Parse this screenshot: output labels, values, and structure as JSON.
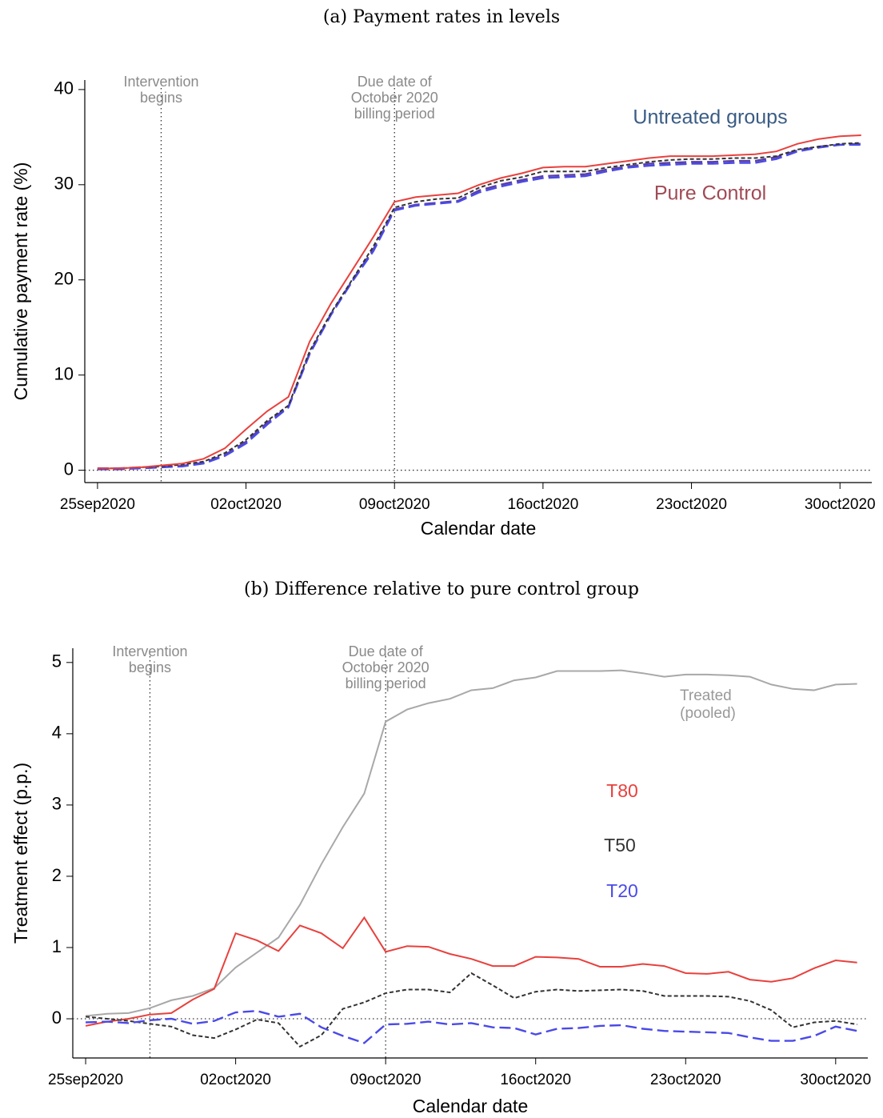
{
  "chart_data": [
    {
      "type": "line",
      "title": "(a) Payment rates in levels",
      "xlabel": "Calendar date",
      "ylabel": "Cumulative payment rate (%)",
      "xlim": [
        "2020-09-24T09:36Z",
        "2020-10-31T12:00Z"
      ],
      "ylim": [
        -1.3,
        41
      ],
      "xticks": [
        {
          "value": "2020-09-25",
          "label": "25sep2020"
        },
        {
          "value": "2020-10-02",
          "label": "02oct2020"
        },
        {
          "value": "2020-10-09",
          "label": "09oct2020"
        },
        {
          "value": "2020-10-16",
          "label": "16oct2020"
        },
        {
          "value": "2020-10-23",
          "label": "23oct2020"
        },
        {
          "value": "2020-10-30",
          "label": "30oct2020"
        }
      ],
      "yticks": [
        0,
        10,
        20,
        30,
        40
      ],
      "hline": 0,
      "vlines": [
        {
          "x": "2020-09-28",
          "text": [
            "Intervention",
            "begins"
          ]
        },
        {
          "x": "2020-10-09",
          "text": [
            "Due date of",
            "October 2020",
            "billing period"
          ]
        }
      ],
      "annotations": [
        {
          "text": "Untreated groups",
          "color": "#3a5c85"
        },
        {
          "text": "Pure Control",
          "color": "#a04a55"
        }
      ],
      "x": [
        "2020-09-25",
        "2020-09-26",
        "2020-09-27",
        "2020-09-28",
        "2020-09-29",
        "2020-09-30",
        "2020-10-01",
        "2020-10-02",
        "2020-10-03",
        "2020-10-04",
        "2020-10-05",
        "2020-10-06",
        "2020-10-07",
        "2020-10-08",
        "2020-10-09",
        "2020-10-10",
        "2020-10-11",
        "2020-10-12",
        "2020-10-13",
        "2020-10-14",
        "2020-10-15",
        "2020-10-16",
        "2020-10-17",
        "2020-10-18",
        "2020-10-19",
        "2020-10-20",
        "2020-10-21",
        "2020-10-22",
        "2020-10-23",
        "2020-10-24",
        "2020-10-25",
        "2020-10-26",
        "2020-10-27",
        "2020-10-28",
        "2020-10-29",
        "2020-10-30",
        "2020-10-31"
      ],
      "series": [
        {
          "color": "#5b3fa3",
          "style": "longdash",
          "values": [
            0.2,
            0.2,
            0.3,
            0.35,
            0.45,
            0.8,
            1.6,
            3.0,
            5.0,
            6.7,
            12.3,
            16.4,
            19.9,
            23.2,
            27.4,
            27.9,
            28.1,
            28.3,
            29.4,
            30.0,
            30.5,
            30.9,
            31.0,
            31.1,
            31.6,
            31.9,
            32.2,
            32.3,
            32.4,
            32.4,
            32.5,
            32.5,
            32.9,
            33.6,
            34.0,
            34.2,
            34.3
          ]
        },
        {
          "color": "#4a4ae8",
          "style": "longdash",
          "values": [
            0.1,
            0.1,
            0.2,
            0.3,
            0.4,
            0.7,
            1.5,
            2.8,
            4.8,
            6.6,
            12.2,
            16.3,
            19.8,
            23.0,
            27.3,
            27.8,
            28.0,
            28.2,
            29.2,
            29.8,
            30.3,
            30.7,
            30.8,
            30.9,
            31.4,
            31.8,
            32.0,
            32.1,
            32.2,
            32.2,
            32.3,
            32.3,
            32.7,
            33.5,
            33.9,
            34.2,
            34.2
          ]
        },
        {
          "color": "#333333",
          "style": "shortdash",
          "values": [
            0.2,
            0.2,
            0.3,
            0.4,
            0.6,
            0.9,
            1.8,
            3.2,
            5.2,
            6.8,
            12.5,
            16.5,
            20.0,
            23.5,
            27.6,
            28.2,
            28.5,
            28.6,
            29.7,
            30.4,
            30.8,
            31.4,
            31.4,
            31.4,
            31.8,
            32.1,
            32.4,
            32.6,
            32.7,
            32.7,
            32.8,
            32.8,
            33.0,
            33.7,
            34.0,
            34.3,
            34.4
          ]
        },
        {
          "color": "#e8413d",
          "style": "solid",
          "values": [
            0.2,
            0.2,
            0.3,
            0.5,
            0.7,
            1.2,
            2.3,
            4.3,
            6.2,
            7.7,
            13.5,
            17.5,
            21.0,
            24.5,
            28.2,
            28.7,
            28.9,
            29.1,
            30.0,
            30.7,
            31.2,
            31.8,
            31.9,
            31.9,
            32.2,
            32.5,
            32.8,
            33.0,
            33.0,
            33.0,
            33.1,
            33.2,
            33.5,
            34.3,
            34.8,
            35.1,
            35.2
          ]
        }
      ]
    },
    {
      "type": "line",
      "title": "(b) Difference relative to pure control group",
      "xlabel": "Calendar date",
      "ylabel": "Treatment effect (p.p.)",
      "xlim": [
        "2020-09-24T09:36Z",
        "2020-10-31T12:00Z"
      ],
      "ylim": [
        -0.55,
        5.2
      ],
      "xticks": [
        {
          "value": "2020-09-25",
          "label": "25sep2020"
        },
        {
          "value": "2020-10-02",
          "label": "02oct2020"
        },
        {
          "value": "2020-10-09",
          "label": "09oct2020"
        },
        {
          "value": "2020-10-16",
          "label": "16oct2020"
        },
        {
          "value": "2020-10-23",
          "label": "23oct2020"
        },
        {
          "value": "2020-10-30",
          "label": "30oct2020"
        }
      ],
      "yticks": [
        0,
        1,
        2,
        3,
        4,
        5
      ],
      "hline": 0,
      "vlines": [
        {
          "x": "2020-09-28",
          "text": [
            "Intervention",
            "begins"
          ]
        },
        {
          "x": "2020-10-09",
          "text": [
            "Due date of",
            "October 2020",
            "billing period"
          ]
        }
      ],
      "x": [
        "2020-09-25",
        "2020-09-26",
        "2020-09-27",
        "2020-09-28",
        "2020-09-29",
        "2020-09-30",
        "2020-10-01",
        "2020-10-02",
        "2020-10-03",
        "2020-10-04",
        "2020-10-05",
        "2020-10-06",
        "2020-10-07",
        "2020-10-08",
        "2020-10-09",
        "2020-10-10",
        "2020-10-11",
        "2020-10-12",
        "2020-10-13",
        "2020-10-14",
        "2020-10-15",
        "2020-10-16",
        "2020-10-17",
        "2020-10-18",
        "2020-10-19",
        "2020-10-20",
        "2020-10-21",
        "2020-10-22",
        "2020-10-23",
        "2020-10-24",
        "2020-10-25",
        "2020-10-26",
        "2020-10-27",
        "2020-10-28",
        "2020-10-29",
        "2020-10-30",
        "2020-10-31"
      ],
      "series": [
        {
          "name": "Treated (pooled)",
          "color": "#a8a8a8",
          "style": "solid",
          "values": [
            0.04,
            0.07,
            0.08,
            0.15,
            0.26,
            0.32,
            0.43,
            0.72,
            0.93,
            1.14,
            1.6,
            2.17,
            2.69,
            3.16,
            4.17,
            4.34,
            4.43,
            4.49,
            4.61,
            4.64,
            4.75,
            4.79,
            4.88,
            4.88,
            4.88,
            4.89,
            4.85,
            4.8,
            4.83,
            4.83,
            4.82,
            4.8,
            4.69,
            4.63,
            4.61,
            4.69,
            4.7
          ]
        },
        {
          "name": "T80",
          "color": "#e8413d",
          "style": "solid",
          "values": [
            -0.1,
            -0.04,
            0.0,
            0.06,
            0.08,
            0.27,
            0.42,
            1.2,
            1.1,
            0.95,
            1.31,
            1.2,
            0.99,
            1.42,
            0.94,
            1.02,
            1.01,
            0.91,
            0.84,
            0.74,
            0.74,
            0.87,
            0.86,
            0.84,
            0.73,
            0.73,
            0.77,
            0.74,
            0.64,
            0.63,
            0.66,
            0.55,
            0.52,
            0.57,
            0.71,
            0.82,
            0.79
          ]
        },
        {
          "name": "T50",
          "color": "#333333",
          "style": "shortdash",
          "values": [
            0.03,
            0.0,
            -0.03,
            -0.07,
            -0.11,
            -0.23,
            -0.27,
            -0.15,
            -0.01,
            -0.06,
            -0.39,
            -0.23,
            0.14,
            0.23,
            0.36,
            0.41,
            0.41,
            0.37,
            0.64,
            0.47,
            0.29,
            0.38,
            0.41,
            0.39,
            0.4,
            0.41,
            0.39,
            0.32,
            0.32,
            0.32,
            0.31,
            0.25,
            0.12,
            -0.12,
            -0.05,
            -0.03,
            -0.08
          ]
        },
        {
          "name": "T20",
          "color": "#4a4ae8",
          "style": "longdash",
          "values": [
            -0.05,
            -0.04,
            -0.06,
            -0.02,
            0.0,
            -0.07,
            -0.03,
            0.09,
            0.11,
            0.03,
            0.07,
            -0.12,
            -0.24,
            -0.34,
            -0.08,
            -0.07,
            -0.04,
            -0.08,
            -0.06,
            -0.12,
            -0.13,
            -0.22,
            -0.14,
            -0.13,
            -0.1,
            -0.09,
            -0.14,
            -0.17,
            -0.18,
            -0.19,
            -0.2,
            -0.26,
            -0.31,
            -0.31,
            -0.24,
            -0.11,
            -0.17
          ]
        }
      ]
    }
  ]
}
